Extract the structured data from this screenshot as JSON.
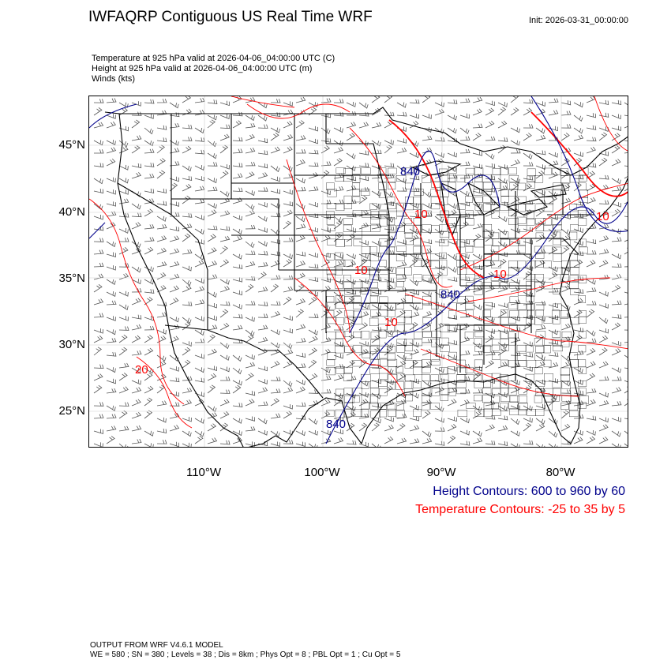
{
  "header": {
    "title": "IWFAQRP Contiguous US Real Time WRF",
    "init": "Init: 2026-03-31_00:00:00"
  },
  "fields": [
    "Temperature at 925 hPa valid at 2026-04-06_04:00:00 UTC   (C)",
    "Height at 925 hPa valid at 2026-04-06_04:00:00 UTC   (m)",
    "Winds   (kts)"
  ],
  "axes": {
    "lat_labels": [
      "45°N",
      "40°N",
      "35°N",
      "30°N",
      "25°N"
    ],
    "lon_labels": [
      "110°W",
      "100°W",
      "90°W",
      "80°W"
    ]
  },
  "contour_labels": {
    "height": [
      "840",
      "840",
      "840"
    ],
    "temperature": [
      "10",
      "10",
      "10",
      "20",
      "10",
      "10"
    ]
  },
  "legend": {
    "height": "Height Contours: 600 to 960 by 60",
    "temperature": "Temperature Contours: -25 to 35 by 5"
  },
  "model": {
    "line1": "OUTPUT FROM WRF V4.6.1 MODEL",
    "line2": "WE = 580 ; SN = 380 ; Levels = 38 ; Dis = 8km ; Phys Opt = 8 ; PBL Opt = 1 ; Cu Opt = 5"
  },
  "colors": {
    "height_contour": "#00008b",
    "temperature_contour": "#ff0000",
    "boundaries": "#000000",
    "wind_barbs": "#555555"
  }
}
